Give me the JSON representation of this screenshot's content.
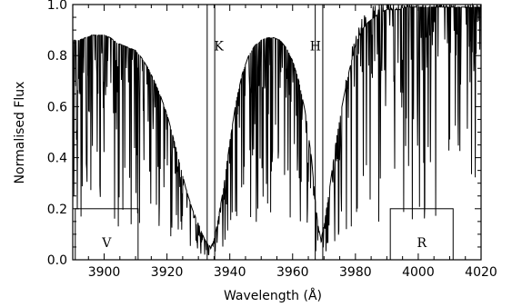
{
  "chart_data": {
    "type": "line",
    "xlabel": "Wavelength (Å)",
    "ylabel": "Normalised Flux",
    "xlim": [
      3890,
      4020
    ],
    "ylim": [
      0.0,
      1.0
    ],
    "xticks": [
      3900,
      3920,
      3940,
      3960,
      3980,
      4000,
      4020
    ],
    "xtick_labels": [
      "3900",
      "3920",
      "3940",
      "3960",
      "3980",
      "4000",
      "4020"
    ],
    "yticks": [
      0.0,
      0.2,
      0.4,
      0.6,
      0.8,
      1.0
    ],
    "ytick_labels": [
      "0.0",
      "0.2",
      "0.4",
      "0.6",
      "0.8",
      "1.0"
    ],
    "line_markers": [
      {
        "label": "K",
        "x1": 3932.8,
        "x2": 3935.2,
        "label_x": 3935.0,
        "label_y": 0.82
      },
      {
        "label": "H",
        "x1": 3967.2,
        "x2": 3969.6,
        "label_x": 3965.5,
        "label_y": 0.82
      }
    ],
    "windows": [
      {
        "label": "V",
        "x1": 3890.8,
        "x2": 3910.8,
        "y": 0.2
      },
      {
        "label": "R",
        "x1": 3991.1,
        "x2": 4011.1,
        "y": 0.2
      }
    ],
    "series": [
      {
        "values_description_free": true,
        "x": [
          3890,
          3892,
          3894,
          3896,
          3898,
          3900,
          3902,
          3904,
          3906,
          3908,
          3910,
          3912,
          3914,
          3916,
          3918,
          3920,
          3922,
          3924,
          3926,
          3928,
          3930,
          3931,
          3932,
          3933,
          3934,
          3935,
          3936,
          3938,
          3940,
          3942,
          3944,
          3946,
          3948,
          3950,
          3952,
          3954,
          3956,
          3958,
          3960,
          3962,
          3964,
          3966,
          3967,
          3968,
          3969,
          3970,
          3972,
          3974,
          3976,
          3978,
          3980,
          3982,
          3984,
          3986,
          3988,
          3990,
          3992,
          3994,
          3996,
          3998,
          4000,
          4002,
          4004,
          4006,
          4008,
          4010,
          4012,
          4014,
          4016,
          4018,
          4020
        ],
        "y": [
          0.86,
          0.86,
          0.87,
          0.88,
          0.88,
          0.88,
          0.87,
          0.85,
          0.84,
          0.83,
          0.82,
          0.79,
          0.75,
          0.7,
          0.64,
          0.57,
          0.48,
          0.38,
          0.28,
          0.2,
          0.14,
          0.11,
          0.08,
          0.06,
          0.05,
          0.08,
          0.14,
          0.28,
          0.46,
          0.62,
          0.73,
          0.8,
          0.84,
          0.86,
          0.87,
          0.87,
          0.86,
          0.83,
          0.78,
          0.7,
          0.58,
          0.4,
          0.26,
          0.14,
          0.08,
          0.13,
          0.3,
          0.48,
          0.62,
          0.74,
          0.84,
          0.9,
          0.93,
          0.95,
          0.97,
          0.98,
          0.98,
          0.98,
          0.99,
          0.99,
          0.99,
          0.99,
          0.99,
          0.99,
          0.99,
          0.99,
          0.99,
          0.99,
          0.99,
          0.99,
          0.99
        ]
      }
    ],
    "grid": false
  }
}
